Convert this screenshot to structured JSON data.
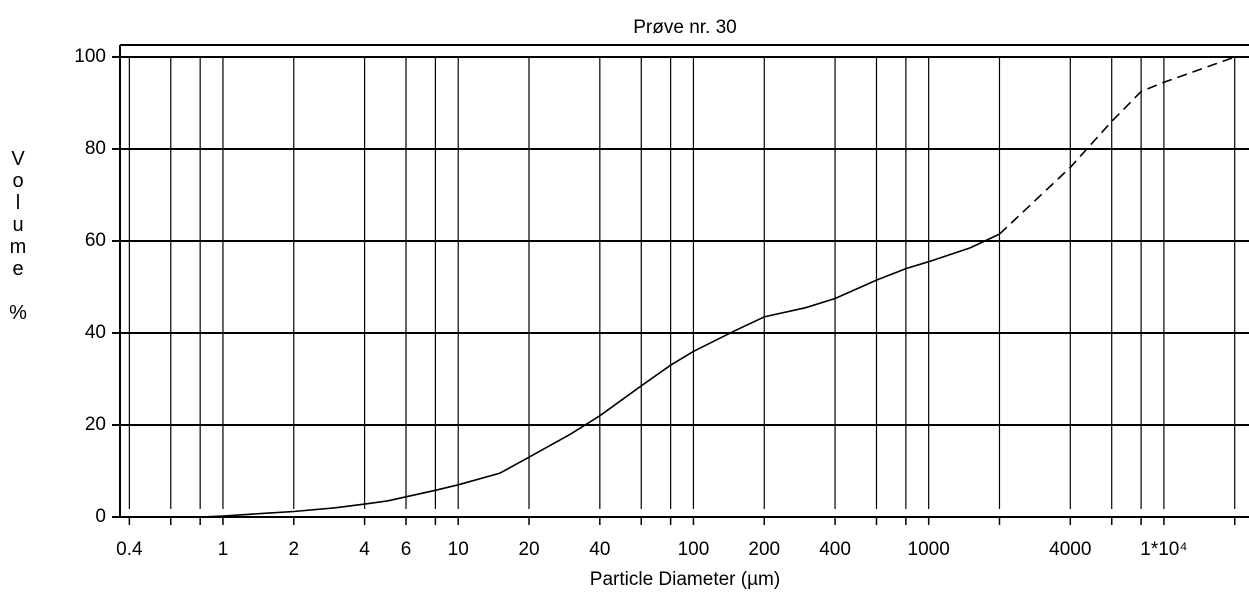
{
  "chart_data": {
    "type": "line",
    "title": "Prøve nr. 30",
    "xlabel": "Particle Diameter (µm)",
    "ylabel": "Volume %",
    "xscale": "log",
    "xlim": [
      0.365,
      23000
    ],
    "ylim": [
      0,
      102.6
    ],
    "xticks": [
      0.4,
      1,
      2,
      4,
      6,
      10,
      20,
      40,
      100,
      200,
      400,
      1000,
      4000,
      {
        "value": 10000,
        "label": "1*10⁴"
      }
    ],
    "xminor": [
      0.6,
      0.8,
      8,
      60,
      80,
      600,
      800,
      2000,
      6000,
      8000,
      20000
    ],
    "yticks": [
      0,
      20,
      40,
      60,
      80,
      100
    ],
    "grid": true,
    "series": [
      {
        "color": "#000000",
        "dash": false,
        "x": [
          0.8,
          1,
          1.5,
          2,
          3,
          4,
          5,
          6,
          8,
          10,
          15,
          20,
          30,
          40,
          60,
          80,
          100,
          150,
          200,
          300,
          400,
          600,
          800,
          1000,
          1500,
          2000
        ],
        "values": [
          0,
          0.2,
          0.8,
          1.2,
          2,
          2.8,
          3.5,
          4.4,
          5.8,
          7,
          9.5,
          13,
          18,
          22,
          28.5,
          33,
          36,
          40.5,
          43.5,
          45.5,
          47.5,
          51.5,
          54,
          55.5,
          58.5,
          61.5
        ]
      },
      {
        "color": "#000000",
        "dash": true,
        "x": [
          2000,
          4000,
          6000,
          8000,
          10000,
          20000
        ],
        "values": [
          61.5,
          76,
          86,
          92.5,
          94.5,
          100
        ]
      }
    ]
  }
}
